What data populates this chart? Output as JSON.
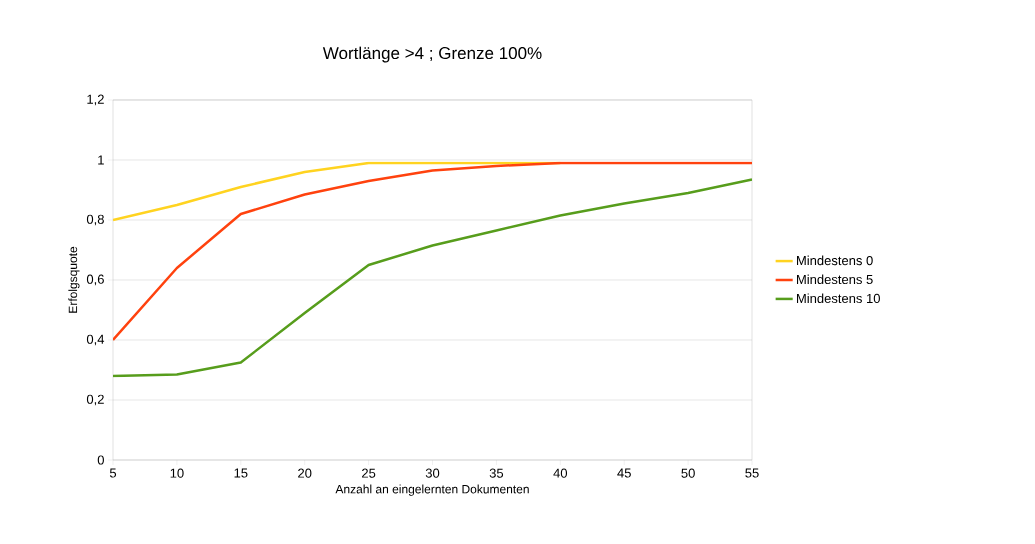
{
  "chart_data": {
    "type": "line",
    "title": "Wortlänge >4 ; Grenze 100%",
    "xlabel": "Anzahl an eingelernten Dokumenten",
    "ylabel": "Erfolgsquote",
    "x": [
      5,
      10,
      15,
      20,
      25,
      30,
      35,
      40,
      45,
      50,
      55
    ],
    "series": [
      {
        "name": "Mindestens 0",
        "color": "#ffd320",
        "values": [
          0.8,
          0.85,
          0.91,
          0.96,
          0.99,
          0.99,
          0.99,
          0.99,
          null,
          null,
          null
        ]
      },
      {
        "name": "Mindestens 5",
        "color": "#ff420e",
        "values": [
          0.4,
          0.64,
          0.82,
          0.885,
          0.93,
          0.965,
          0.98,
          0.99,
          0.99,
          0.99,
          0.99
        ]
      },
      {
        "name": "Mindestens 10",
        "color": "#579d1c",
        "values": [
          0.28,
          0.285,
          0.325,
          0.49,
          0.65,
          0.715,
          0.765,
          0.815,
          0.855,
          0.89,
          0.935
        ]
      }
    ],
    "xlim": [
      5,
      55
    ],
    "xticks": [
      5,
      10,
      15,
      20,
      25,
      30,
      35,
      40,
      45,
      50,
      55
    ],
    "ylim": [
      0,
      1.2
    ],
    "yticks": [
      {
        "value": 0,
        "label": "0"
      },
      {
        "value": 0.2,
        "label": "0,2"
      },
      {
        "value": 0.4,
        "label": "0,4"
      },
      {
        "value": 0.6,
        "label": "0,6"
      },
      {
        "value": 0.8,
        "label": "0,8"
      },
      {
        "value": 1,
        "label": "1"
      },
      {
        "value": 1.2,
        "label": "1,2"
      }
    ],
    "grid": "y",
    "legend": "right"
  }
}
